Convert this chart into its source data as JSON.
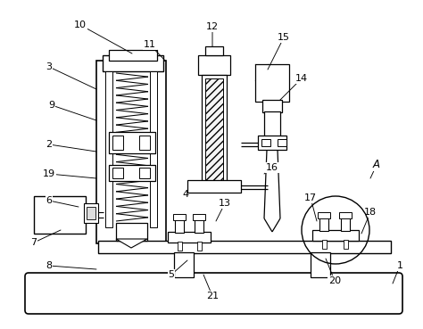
{
  "background_color": "#ffffff",
  "line_color": "#000000",
  "figsize": [
    4.74,
    3.69
  ],
  "dpi": 100,
  "annotations": [
    [
      "10",
      90,
      28,
      148,
      60
    ],
    [
      "3",
      55,
      75,
      108,
      100
    ],
    [
      "11",
      168,
      50,
      185,
      68
    ],
    [
      "12",
      238,
      30,
      238,
      60
    ],
    [
      "15",
      318,
      42,
      300,
      78
    ],
    [
      "14",
      338,
      88,
      308,
      118
    ],
    [
      "9",
      58,
      118,
      108,
      135
    ],
    [
      "2",
      55,
      162,
      108,
      170
    ],
    [
      "19",
      55,
      195,
      108,
      200
    ],
    [
      "6",
      55,
      225,
      88,
      232
    ],
    [
      "4",
      208,
      218,
      222,
      210
    ],
    [
      "16",
      305,
      188,
      296,
      195
    ],
    [
      "13",
      252,
      228,
      242,
      248
    ],
    [
      "7",
      38,
      272,
      68,
      258
    ],
    [
      "8",
      55,
      298,
      108,
      302
    ],
    [
      "5",
      192,
      308,
      210,
      292
    ],
    [
      "21",
      238,
      332,
      228,
      308
    ],
    [
      "20",
      375,
      315,
      365,
      290
    ],
    [
      "17",
      348,
      222,
      355,
      248
    ],
    [
      "18",
      415,
      238,
      405,
      262
    ],
    [
      "1",
      448,
      298,
      440,
      318
    ],
    [
      "A",
      422,
      185,
      415,
      200
    ]
  ]
}
